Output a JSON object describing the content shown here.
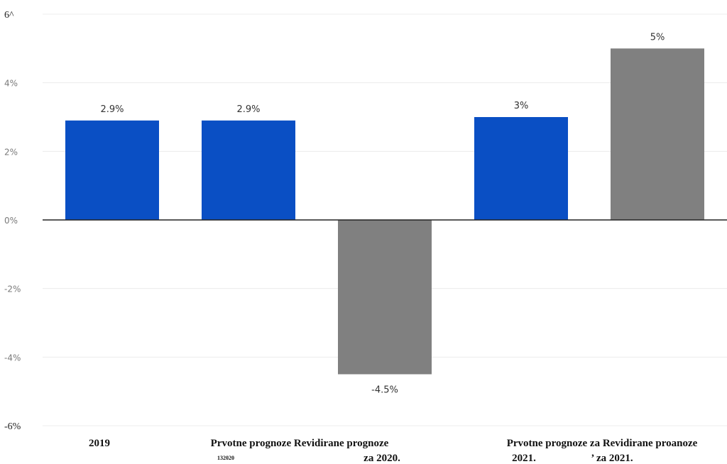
{
  "chart_data": {
    "type": "bar",
    "title": "",
    "xlabel": "",
    "ylabel": "",
    "ylim": [
      -6,
      6
    ],
    "grid": true,
    "y_ticks": [
      {
        "value": 6,
        "label": "6^"
      },
      {
        "value": 4,
        "label": "4%"
      },
      {
        "value": 2,
        "label": "2%"
      },
      {
        "value": 0,
        "label": "0%"
      },
      {
        "value": -2,
        "label": "-2%"
      },
      {
        "value": -4,
        "label": "-4%"
      },
      {
        "value": -6,
        "label": "-6%"
      }
    ],
    "bars": [
      {
        "value": 2.9,
        "label": "2.9%",
        "color": "#0a4fc4"
      },
      {
        "value": 2.9,
        "label": "2.9%",
        "color": "#0a4fc4"
      },
      {
        "value": -4.5,
        "label": "-4.5%",
        "color": "#808080"
      },
      {
        "value": 3,
        "label": "3%",
        "color": "#0a4fc4"
      },
      {
        "value": 5,
        "label": "5%",
        "color": "#808080"
      }
    ],
    "category_labels": {
      "c2019": "2019",
      "c2020_line1": "Prvotne prognoze Revidirane prognoze",
      "c2020_small": "132020",
      "c2020_line2": "za 2020.",
      "c2021_line1": "Prvotne prognoze za Revidirane proanoze",
      "c2021_line2a": "2021.",
      "c2021_line2b": "’ za 2021."
    }
  }
}
